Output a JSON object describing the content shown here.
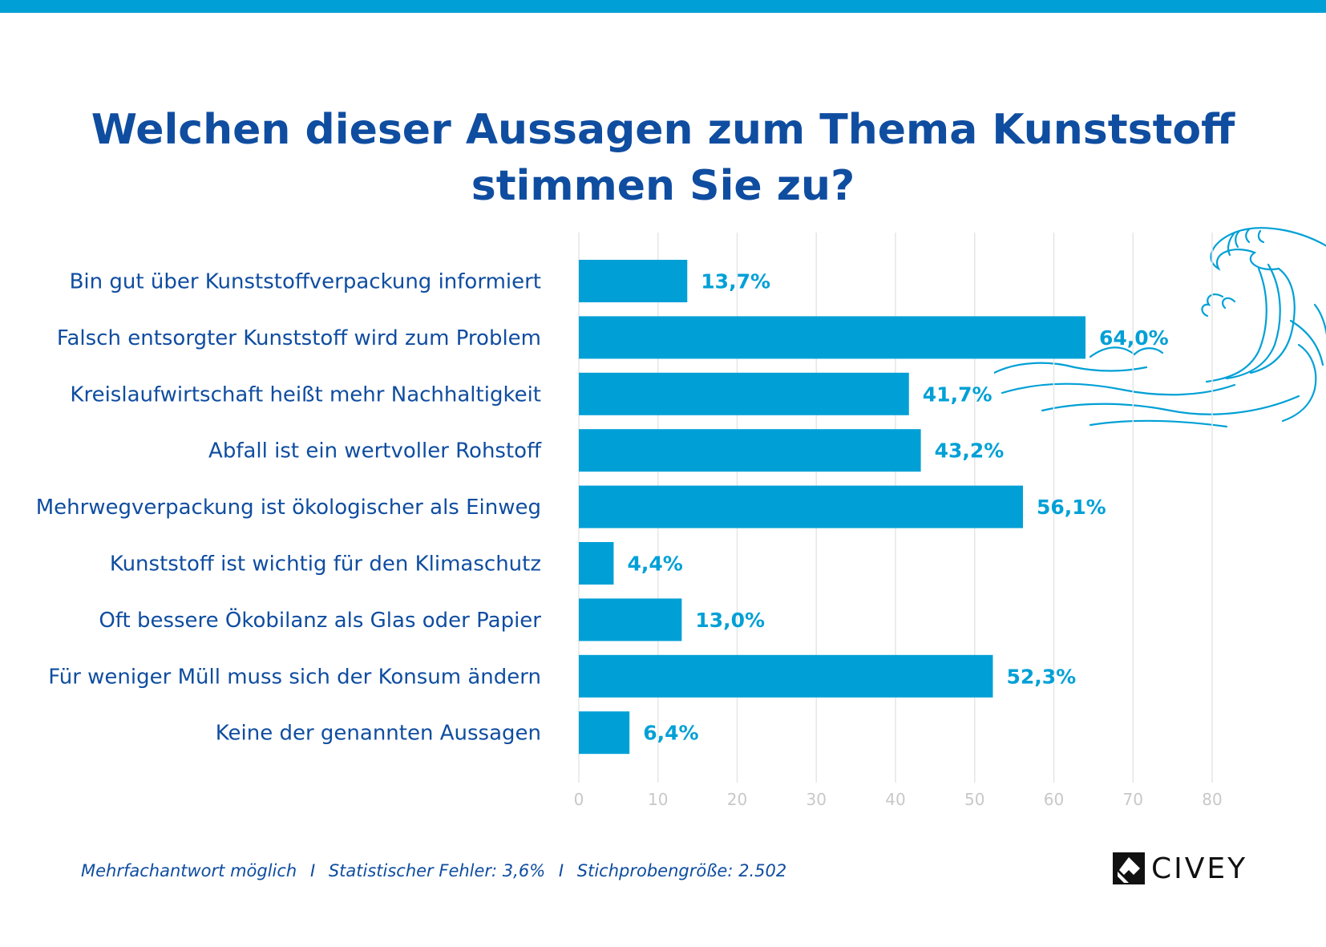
{
  "title": {
    "line1": "Welchen dieser Aussagen zum Thema Kunststoff",
    "line2": "stimmen Sie zu?"
  },
  "colors": {
    "bar": "#00a0d6",
    "title": "#0f4da0",
    "label": "#0f4da0",
    "value": "#00a0d6",
    "grid": "#e6e6e6",
    "tick": "#c8c8c8",
    "top_bar": "#00a0d6"
  },
  "chart_data": {
    "type": "bar",
    "orientation": "horizontal",
    "categories": [
      "Bin gut über Kunststoffverpackung informiert",
      "Falsch entsorgter Kunststoff wird zum Problem",
      "Kreislaufwirtschaft heißt mehr Nachhaltigkeit",
      "Abfall ist ein wertvoller Rohstoff",
      "Mehrwegverpackung ist ökologischer als Einweg",
      "Kunststoff ist wichtig für den Klimaschutz",
      "Oft bessere Ökobilanz als Glas oder Papier",
      "Für weniger Müll muss sich der Konsum ändern",
      "Keine der genannten Aussagen"
    ],
    "values": [
      13.7,
      64.0,
      41.7,
      43.2,
      56.1,
      4.4,
      13.0,
      52.3,
      6.4
    ],
    "value_labels": [
      "13,7%",
      "64,0%",
      "41,7%",
      "43,2%",
      "56,1%",
      "4,4%",
      "13,0%",
      "52,3%",
      "6,4%"
    ],
    "xlim": [
      0,
      80
    ],
    "xticks": [
      0,
      10,
      20,
      30,
      40,
      50,
      60,
      70,
      80
    ],
    "grid": true,
    "legend": "none"
  },
  "footer": {
    "note1": "Mehrfachantwort möglich",
    "separator": "I",
    "note2": "Statistischer Fehler: 3,6%",
    "note3": "Stichprobengröße: 2.502"
  },
  "logo": {
    "text": "CIVEY"
  },
  "decoration": {
    "icon": "wave-icon"
  }
}
